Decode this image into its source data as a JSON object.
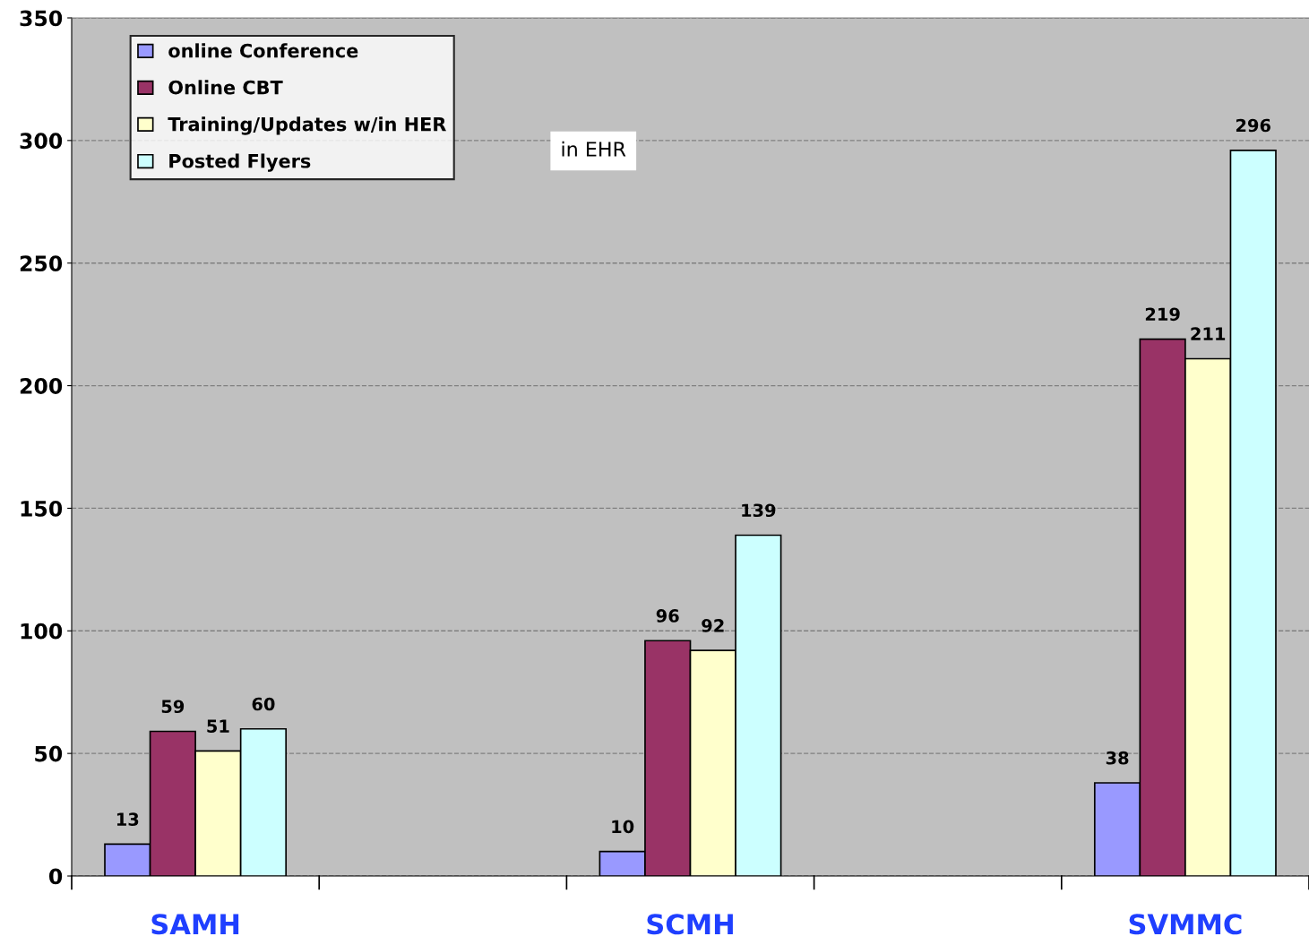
{
  "chart_data": {
    "type": "bar",
    "categories": [
      "SAMH",
      null,
      "SCMH",
      null,
      "SVMMC"
    ],
    "series": [
      {
        "name": "online Conference",
        "color": "#9999ff",
        "values": [
          13,
          null,
          10,
          null,
          38
        ]
      },
      {
        "name": "Online CBT",
        "color": "#993366",
        "values": [
          59,
          null,
          96,
          null,
          219
        ]
      },
      {
        "name": "Training/Updates w/in HER",
        "color": "#ffffcc",
        "values": [
          51,
          null,
          92,
          null,
          211
        ]
      },
      {
        "name": "Posted Flyers",
        "color": "#ccffff",
        "values": [
          60,
          null,
          139,
          null,
          296
        ]
      }
    ],
    "ylim": [
      0,
      350
    ],
    "yticks": [
      0,
      50,
      100,
      150,
      200,
      250,
      300,
      350
    ],
    "grid": "y",
    "legend": "top left",
    "data_labels": true,
    "annotations": [
      "in EHR"
    ]
  }
}
